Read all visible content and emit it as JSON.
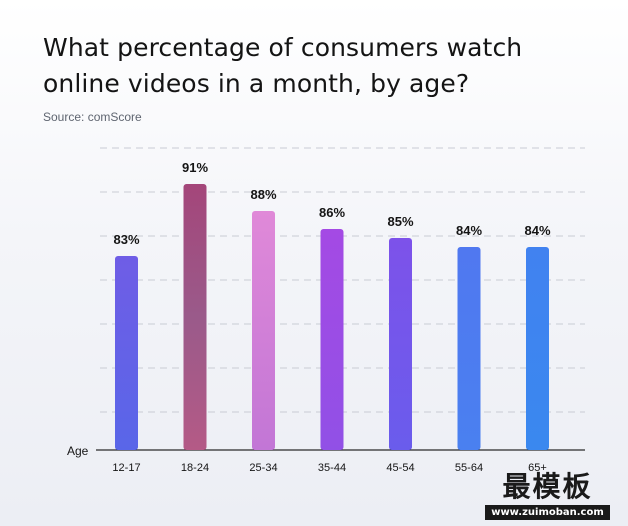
{
  "header": {
    "title": "What percentage of consumers watch online videos in a month, by age?",
    "source": "Source: comScore"
  },
  "watermark": {
    "cn_text": "最模板",
    "url_text": "www.zuimoban.com"
  },
  "chart_data": {
    "type": "bar",
    "title": "What percentage of consumers watch online videos in a month, by age?",
    "xlabel": "Age",
    "ylabel": "",
    "categories": [
      "12-17",
      "18-24",
      "25-34",
      "35-44",
      "45-54",
      "55-64",
      "65+"
    ],
    "values": [
      83,
      91,
      88,
      86,
      85,
      84,
      84
    ],
    "data_labels": [
      "83%",
      "91%",
      "88%",
      "86%",
      "85%",
      "84%",
      "84%"
    ],
    "value_unit": "%",
    "ylim": [
      0,
      100
    ],
    "grid": true,
    "legend": "none",
    "colors": [
      "#6c5ce7",
      "#a0507a",
      "#d982d6",
      "#9b4ee6",
      "#7a54ea",
      "#4f7df0",
      "#3f86f0"
    ]
  }
}
